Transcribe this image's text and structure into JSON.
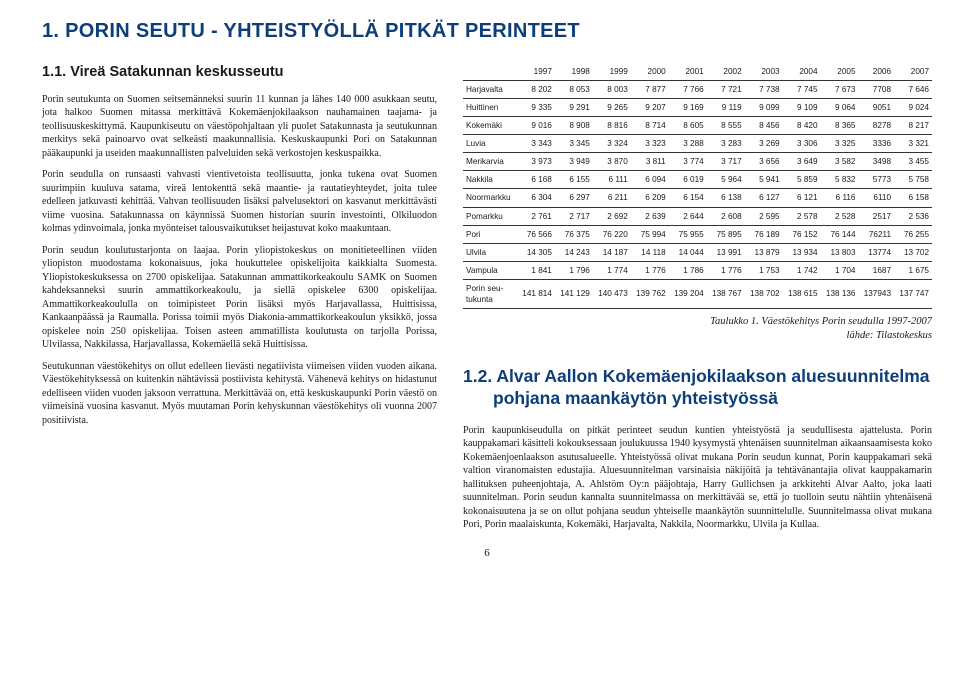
{
  "heading": "1.    PORIN SEUTU - YHTEISTYÖLLÄ PITKÄT PERINTEET",
  "section_title": "1.1.  Vireä Satakunnan keskusseutu",
  "p1": "Porin seutukunta on Suomen seitsemänneksi suurin 11 kunnan ja lähes 140 000 asukkaan seutu, jota halkoo Suomen mitassa merkittävä Kokemäenjokilaakson nauhamainen taajama- ja teollisuuskeskittymä. Kaupunkiseutu on väestöpohjaltaan yli puolet Satakunnasta ja seutukunnan merkitys sekä painoarvo ovat selkeästi maakunnallisia. Keskuskaupunki Pori on Satakunnan pääkaupunki ja useiden maakunnallisten palveluiden sekä verkostojen keskuspaikka.",
  "p2": "Porin seudulla on runsaasti vahvasti vientivetoista teollisuutta, jonka tukena ovat Suomen suurimpiin kuuluva satama, vireä lentokenttä sekä maantie- ja rautatieyhteydet, joita tulee edelleen jatkuvasti kehittää. Vahvan teollisuuden lisäksi palvelusektori on kasvanut merkittävästi viime vuosina. Satakunnassa on käynnissä Suomen historian suurin investointi, Olkiluodon kolmas ydinvoimala, jonka myönteiset talousvaikutukset heijastuvat koko maakuntaan.",
  "p3": "Porin seudun koulutustarjonta on laajaa. Porin yliopistokeskus on monitieteellinen viiden yliopiston muodostama kokonaisuus, joka houkuttelee opiskelijoita kaikkialta Suomesta. Yliopistokeskuksessa on 2700 opiskelijaa. Satakunnan ammattikorkeakoulu SAMK on Suomen kahdeksanneksi suurin ammattikorkeakoulu, ja siellä opiskelee 6300 opiskelijaa. Ammattikorkeakoululla on toimipisteet Porin lisäksi myös Harjavallassa, Huittisissa, Kankaanpäässä ja Raumalla.  Porissa toimii myös Diakonia-ammattikorkeakoulun yksikkö, jossa opiskelee noin 250 opiskelijaa. Toisen asteen ammatillista koulutusta on tarjolla Porissa, Ulvilassa, Nakkilassa, Harjavallassa, Kokemäellä sekä Huittisissa.",
  "p4": "Seutukunnan väestökehitys on ollut edelleen lievästi negatiivista viimeisen viiden vuoden aikana. Väestökehityksessä on kuitenkin nähtävissä postiivista kehitystä. Vähenevä kehitys on hidastunut edelliseen viiden vuoden jaksoon verrattuna.  Merkittävää on, että keskuskaupunki Porin väestö on viimeisinä vuosina kasvanut. Myös muutaman Porin kehyskunnan väestökehitys oli vuonna 2007 positiivista.",
  "table": {
    "years": [
      "1997",
      "1998",
      "1999",
      "2000",
      "2001",
      "2002",
      "2003",
      "2004",
      "2005",
      "2006",
      "2007"
    ],
    "rows": [
      {
        "n": "Harjavalta",
        "v": [
          "8 202",
          "8 053",
          "8 003",
          "7 877",
          "7 766",
          "7 721",
          "7 738",
          "7 745",
          "7 673",
          "7708",
          "7 646"
        ]
      },
      {
        "n": "Huittinen",
        "v": [
          "9 335",
          "9 291",
          "9 265",
          "9 207",
          "9 169",
          "9 119",
          "9 099",
          "9 109",
          "9 064",
          "9051",
          "9 024"
        ]
      },
      {
        "n": "Kokemäki",
        "v": [
          "9 016",
          "8 908",
          "8 816",
          "8 714",
          "8 605",
          "8 555",
          "8 456",
          "8 420",
          "8 365",
          "8278",
          "8 217"
        ]
      },
      {
        "n": "Luvia",
        "v": [
          "3 343",
          "3 345",
          "3 324",
          "3 323",
          "3 288",
          "3 283",
          "3 269",
          "3 306",
          "3 325",
          "3336",
          "3 321"
        ]
      },
      {
        "n": "Merikarvia",
        "v": [
          "3 973",
          "3 949",
          "3 870",
          "3 811",
          "3 774",
          "3 717",
          "3 656",
          "3 649",
          "3 582",
          "3498",
          "3 455"
        ]
      },
      {
        "n": "Nakkila",
        "v": [
          "6 168",
          "6 155",
          "6 111",
          "6 094",
          "6 019",
          "5 964",
          "5 941",
          "5 859",
          "5 832",
          "5773",
          "5 758"
        ]
      },
      {
        "n": "Noormarkku",
        "v": [
          "6 304",
          "6 297",
          "6 211",
          "6 209",
          "6 154",
          "6 138",
          "6 127",
          "6 121",
          "6 116",
          "6110",
          "6 158"
        ]
      },
      {
        "n": "Pomarkku",
        "v": [
          "2 761",
          "2 717",
          "2 692",
          "2 639",
          "2 644",
          "2 608",
          "2 595",
          "2 578",
          "2 528",
          "2517",
          "2 536"
        ]
      },
      {
        "n": "Pori",
        "v": [
          "76 566",
          "76 375",
          "76 220",
          "75 994",
          "75 955",
          "75 895",
          "76 189",
          "76 152",
          "76 144",
          "76211",
          "76 255"
        ]
      },
      {
        "n": "Ulvila",
        "v": [
          "14 305",
          "14 243",
          "14 187",
          "14 118",
          "14 044",
          "13 991",
          "13 879",
          "13 934",
          "13 803",
          "13774",
          "13 702"
        ]
      },
      {
        "n": "Vampula",
        "v": [
          "1 841",
          "1 796",
          "1 774",
          "1 776",
          "1 786",
          "1 776",
          "1 753",
          "1 742",
          "1 704",
          "1687",
          "1 675"
        ]
      },
      {
        "n": "Porin seu-\ntukunta",
        "v": [
          "141 814",
          "141 129",
          "140 473",
          "139 762",
          "139 204",
          "138 767",
          "138 702",
          "138 615",
          "138 136",
          "137943",
          "137 747"
        ]
      }
    ]
  },
  "caption1": "Taulukko 1. Väestökehitys Porin seudulla 1997-2007",
  "caption2": "lähde: Tilastokeskus",
  "section2_title": "1.2.  Alvar Aallon Kokemäenjokilaakson aluesuunnitelma pohjana maankäytön yhteistyössä",
  "p5": "Porin kaupunkiseudulla on pitkät perinteet seudun kuntien yhteistyöstä ja seudullisesta ajattelusta. Porin kauppakamari käsitteli kokouksessaan joulukuussa 1940 kysymystä yhtenäisen suunnitelman aikaansaamisesta koko Kokemäenjoenlaakson asutusalueelle. Yhteistyössä olivat mukana Porin seudun kunnat, Porin kauppakamari sekä valtion viranomaisten edustajia. Aluesuunnitelman varsinaisia näkijöitä ja tehtävänantajia olivat kauppakamarin hallituksen puheenjohtaja, A. Ahlstöm Oy:n pääjohtaja, Harry Gullichsen ja arkkitehti Alvar Aalto, joka laati suunnitelman. Porin seudun kannalta suunnitelmassa on merkittävää se, että jo tuolloin seutu nähtiin yhtenäisenä kokonaisuutena ja se on ollut pohjana seudun yhteiselle maankäytön suunnittelulle. Suunnitelmassa olivat mukana Pori, Porin maalaiskunta, Kokemäki, Harjavalta, Nakkila, Noormarkku, Ulvila ja Kullaa.",
  "pagenum": "6"
}
